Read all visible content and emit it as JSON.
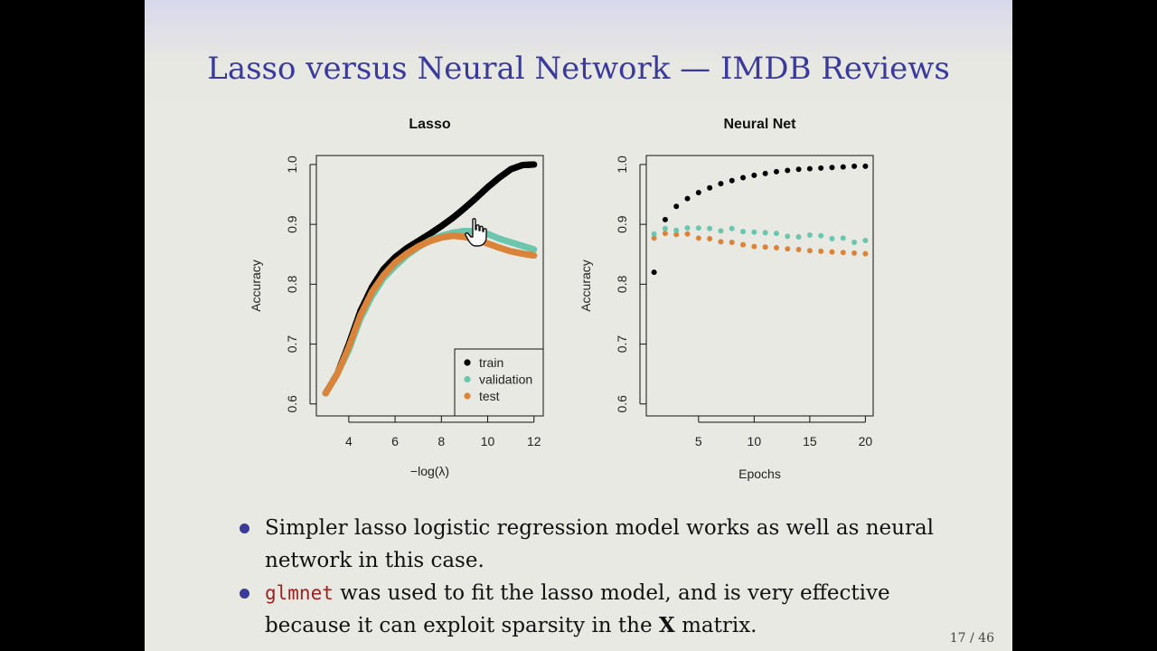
{
  "slide": {
    "title": "Lasso versus Neural Network — IMDB Reviews",
    "page_number": "17 / 46",
    "bullets": [
      {
        "text": "Simpler lasso logistic regression model works as well as neural network in this case."
      },
      {
        "code": "glmnet",
        "text_before_bold": " was used to fit the lasso model, and is very effective because it can exploit sparsity in the ",
        "bold": "X",
        "text_after_bold": " matrix."
      }
    ]
  },
  "colors": {
    "train": "#000000",
    "validation": "#6cc6ae",
    "test": "#d9843a",
    "title": "#3a3a9c"
  },
  "icons": {
    "cursor": "hand-pointer-icon"
  },
  "chart_data": [
    {
      "type": "scatter",
      "title": "Lasso",
      "xlabel": "−log(λ)",
      "ylabel": "Accuracy",
      "xlim": [
        2.6,
        12.4
      ],
      "ylim": [
        0.58,
        1.015
      ],
      "xticks": [
        4,
        6,
        8,
        10,
        12
      ],
      "yticks": [
        0.6,
        0.7,
        0.8,
        0.9,
        1.0
      ],
      "legend": {
        "placement": "bottom-right",
        "entries": [
          "train",
          "validation",
          "test"
        ]
      },
      "series": [
        {
          "name": "train",
          "x": [
            3,
            3.5,
            4,
            4.5,
            5,
            5.5,
            6,
            6.5,
            7,
            7.5,
            8,
            8.5,
            9,
            9.5,
            10,
            10.5,
            11,
            11.5,
            12
          ],
          "y": [
            0.618,
            0.65,
            0.7,
            0.755,
            0.795,
            0.825,
            0.845,
            0.86,
            0.872,
            0.884,
            0.897,
            0.911,
            0.927,
            0.944,
            0.962,
            0.978,
            0.992,
            0.999,
            1.0
          ]
        },
        {
          "name": "validation",
          "x": [
            3,
            3.5,
            4,
            4.5,
            5,
            5.5,
            6,
            6.5,
            7,
            7.5,
            8,
            8.5,
            9,
            9.5,
            10,
            10.5,
            11,
            11.5,
            12
          ],
          "y": [
            0.618,
            0.65,
            0.69,
            0.742,
            0.78,
            0.81,
            0.83,
            0.848,
            0.862,
            0.873,
            0.881,
            0.886,
            0.889,
            0.888,
            0.884,
            0.876,
            0.87,
            0.864,
            0.858
          ]
        },
        {
          "name": "test",
          "x": [
            3,
            3.5,
            4,
            4.5,
            5,
            5.5,
            6,
            6.5,
            7,
            7.5,
            8,
            8.5,
            9,
            9.5,
            10,
            10.5,
            11,
            11.5,
            12
          ],
          "y": [
            0.618,
            0.65,
            0.695,
            0.748,
            0.787,
            0.815,
            0.836,
            0.851,
            0.863,
            0.872,
            0.878,
            0.881,
            0.879,
            0.875,
            0.868,
            0.861,
            0.855,
            0.851,
            0.848
          ]
        }
      ]
    },
    {
      "type": "scatter",
      "title": "Neural Net",
      "xlabel": "Epochs",
      "ylabel": "Accuracy",
      "xlim": [
        0.3,
        20.7
      ],
      "ylim": [
        0.58,
        1.015
      ],
      "xticks": [
        5,
        10,
        15,
        20
      ],
      "yticks": [
        0.6,
        0.7,
        0.8,
        0.9,
        1.0
      ],
      "series": [
        {
          "name": "train",
          "x": [
            1,
            2,
            3,
            4,
            5,
            6,
            7,
            8,
            9,
            10,
            11,
            12,
            13,
            14,
            15,
            16,
            17,
            18,
            19,
            20
          ],
          "y": [
            0.82,
            0.908,
            0.93,
            0.943,
            0.953,
            0.961,
            0.968,
            0.973,
            0.978,
            0.982,
            0.985,
            0.988,
            0.99,
            0.992,
            0.993,
            0.994,
            0.995,
            0.996,
            0.997,
            0.997
          ]
        },
        {
          "name": "validation",
          "x": [
            1,
            2,
            3,
            4,
            5,
            6,
            7,
            8,
            9,
            10,
            11,
            12,
            13,
            14,
            15,
            16,
            17,
            18,
            19,
            20
          ],
          "y": [
            0.884,
            0.893,
            0.89,
            0.894,
            0.894,
            0.893,
            0.889,
            0.893,
            0.888,
            0.887,
            0.886,
            0.885,
            0.88,
            0.879,
            0.882,
            0.881,
            0.876,
            0.877,
            0.87,
            0.873
          ]
        },
        {
          "name": "test",
          "x": [
            1,
            2,
            3,
            4,
            5,
            6,
            7,
            8,
            9,
            10,
            11,
            12,
            13,
            14,
            15,
            16,
            17,
            18,
            19,
            20
          ],
          "y": [
            0.877,
            0.885,
            0.883,
            0.884,
            0.877,
            0.876,
            0.871,
            0.87,
            0.866,
            0.863,
            0.862,
            0.861,
            0.859,
            0.858,
            0.856,
            0.855,
            0.854,
            0.853,
            0.852,
            0.851
          ]
        }
      ]
    }
  ]
}
